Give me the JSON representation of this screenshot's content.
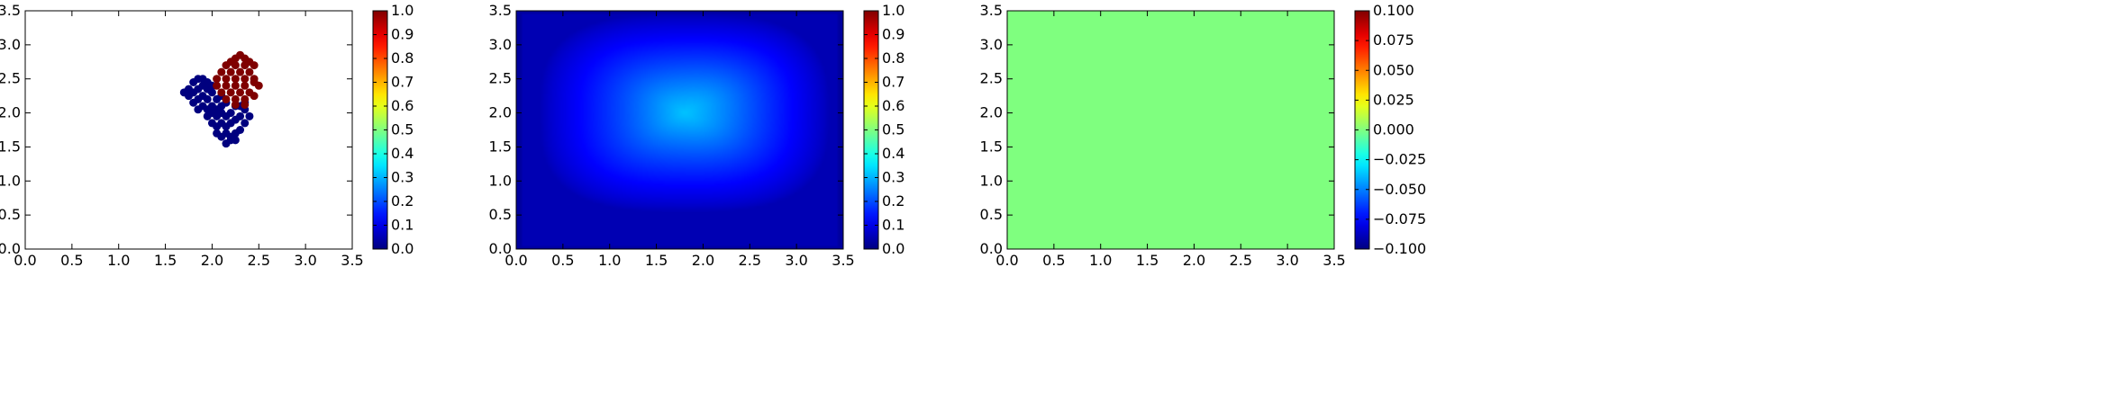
{
  "colormap": "jet",
  "chart_data": [
    {
      "type": "scatter",
      "xlim": [
        0,
        3.5
      ],
      "ylim": [
        0,
        3.5
      ],
      "xticks": [
        "0.0",
        "0.5",
        "1.0",
        "1.5",
        "2.0",
        "2.5",
        "3.0",
        "3.5"
      ],
      "yticks": [
        "0.0",
        "0.5",
        "1.0",
        "1.5",
        "2.0",
        "2.5",
        "3.0",
        "3.5"
      ],
      "grid": false,
      "colorbar": {
        "range": [
          0,
          1
        ],
        "ticks": [
          "0.0",
          "0.1",
          "0.2",
          "0.3",
          "0.4",
          "0.5",
          "0.6",
          "0.7",
          "0.8",
          "0.9",
          "1.0"
        ]
      },
      "series": [
        {
          "value": 0,
          "color": "#00007f",
          "points": [
            [
              1.7,
              2.3
            ],
            [
              1.75,
              2.35
            ],
            [
              1.8,
              2.45
            ],
            [
              1.85,
              2.5
            ],
            [
              1.9,
              2.5
            ],
            [
              1.95,
              2.45
            ],
            [
              1.75,
              2.25
            ],
            [
              1.8,
              2.3
            ],
            [
              1.85,
              2.35
            ],
            [
              1.9,
              2.4
            ],
            [
              1.95,
              2.35
            ],
            [
              2.0,
              2.4
            ],
            [
              1.8,
              2.15
            ],
            [
              1.85,
              2.2
            ],
            [
              1.9,
              2.25
            ],
            [
              1.95,
              2.2
            ],
            [
              2.0,
              2.3
            ],
            [
              2.05,
              2.2
            ],
            [
              1.85,
              2.05
            ],
            [
              1.9,
              2.1
            ],
            [
              1.95,
              2.05
            ],
            [
              2.0,
              2.1
            ],
            [
              2.05,
              2.05
            ],
            [
              2.1,
              2.1
            ],
            [
              1.95,
              1.95
            ],
            [
              2.0,
              2.0
            ],
            [
              2.05,
              1.95
            ],
            [
              2.1,
              2.0
            ],
            [
              2.15,
              1.95
            ],
            [
              2.2,
              2.0
            ],
            [
              2.0,
              1.85
            ],
            [
              2.05,
              1.8
            ],
            [
              2.1,
              1.85
            ],
            [
              2.15,
              1.8
            ],
            [
              2.2,
              1.85
            ],
            [
              2.25,
              1.9
            ],
            [
              2.05,
              1.7
            ],
            [
              2.1,
              1.65
            ],
            [
              2.15,
              1.7
            ],
            [
              2.2,
              1.65
            ],
            [
              2.25,
              1.7
            ],
            [
              2.3,
              1.75
            ],
            [
              2.15,
              1.55
            ],
            [
              2.2,
              1.6
            ],
            [
              2.25,
              1.6
            ],
            [
              2.3,
              1.95
            ],
            [
              2.3,
              2.1
            ],
            [
              2.35,
              2.05
            ],
            [
              2.35,
              1.85
            ],
            [
              2.25,
              2.1
            ],
            [
              2.15,
              2.15
            ],
            [
              2.1,
              2.25
            ],
            [
              2.35,
              2.15
            ],
            [
              2.4,
              1.95
            ]
          ]
        },
        {
          "value": 1,
          "color": "#7f0000",
          "points": [
            [
              2.3,
              2.85
            ],
            [
              2.25,
              2.8
            ],
            [
              2.35,
              2.8
            ],
            [
              2.2,
              2.75
            ],
            [
              2.4,
              2.75
            ],
            [
              2.15,
              2.7
            ],
            [
              2.25,
              2.7
            ],
            [
              2.35,
              2.7
            ],
            [
              2.45,
              2.7
            ],
            [
              2.1,
              2.6
            ],
            [
              2.2,
              2.6
            ],
            [
              2.3,
              2.6
            ],
            [
              2.4,
              2.6
            ],
            [
              2.05,
              2.5
            ],
            [
              2.15,
              2.5
            ],
            [
              2.25,
              2.5
            ],
            [
              2.35,
              2.5
            ],
            [
              2.45,
              2.5
            ],
            [
              2.05,
              2.4
            ],
            [
              2.15,
              2.4
            ],
            [
              2.25,
              2.4
            ],
            [
              2.35,
              2.4
            ],
            [
              2.45,
              2.45
            ],
            [
              2.5,
              2.4
            ],
            [
              2.1,
              2.3
            ],
            [
              2.2,
              2.3
            ],
            [
              2.3,
              2.3
            ],
            [
              2.4,
              2.3
            ],
            [
              2.15,
              2.2
            ],
            [
              2.25,
              2.2
            ],
            [
              2.35,
              2.2
            ],
            [
              2.45,
              2.25
            ],
            [
              2.25,
              2.12
            ],
            [
              2.35,
              2.12
            ]
          ]
        }
      ]
    },
    {
      "type": "heatmap",
      "xlim": [
        0,
        3.5
      ],
      "ylim": [
        0,
        3.5
      ],
      "xticks": [
        "0.0",
        "0.5",
        "1.0",
        "1.5",
        "2.0",
        "2.5",
        "3.0",
        "3.5"
      ],
      "yticks": [
        "0.0",
        "0.5",
        "1.0",
        "1.5",
        "2.0",
        "2.5",
        "3.0",
        "3.5"
      ],
      "grid": false,
      "field": {
        "min_value": 0.05,
        "max_value": 0.32,
        "peak": [
          2.0,
          2.1
        ],
        "plateau_center": [
          1.8,
          2.0
        ]
      },
      "colorbar": {
        "range": [
          0,
          1
        ],
        "ticks": [
          "0.0",
          "0.1",
          "0.2",
          "0.3",
          "0.4",
          "0.5",
          "0.6",
          "0.7",
          "0.8",
          "0.9",
          "1.0"
        ]
      }
    },
    {
      "type": "heatmap",
      "xlim": [
        0,
        3.5
      ],
      "ylim": [
        0,
        3.5
      ],
      "xticks": [
        "0.0",
        "0.5",
        "1.0",
        "1.5",
        "2.0",
        "2.5",
        "3.0",
        "3.5"
      ],
      "yticks": [
        "0.0",
        "0.5",
        "1.0",
        "1.5",
        "2.0",
        "2.5",
        "3.0",
        "3.5"
      ],
      "grid": false,
      "field": {
        "constant_value": 0.0,
        "color": "#7fff7f"
      },
      "colorbar": {
        "range": [
          -0.1,
          0.1
        ],
        "ticks": [
          "−0.100",
          "−0.075",
          "−0.050",
          "−0.025",
          "0.000",
          "0.025",
          "0.050",
          "0.075",
          "0.100"
        ]
      }
    }
  ]
}
